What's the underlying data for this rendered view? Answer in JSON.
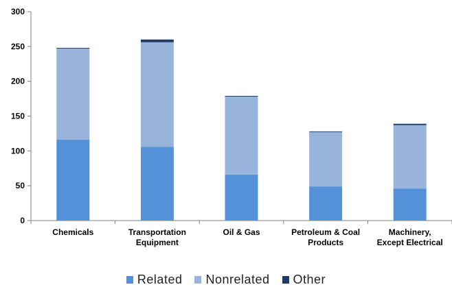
{
  "chart_data": {
    "type": "bar",
    "stacked": true,
    "categories": [
      [
        "Chemicals"
      ],
      [
        "Transportation",
        "Equipment"
      ],
      [
        "Oil & Gas"
      ],
      [
        "Petroleum & Coal",
        "Products"
      ],
      [
        "Machinery,",
        "Except Electrical"
      ]
    ],
    "series": [
      {
        "name": "Related",
        "color": "#5591d9",
        "values": [
          116,
          106,
          66,
          49,
          46
        ]
      },
      {
        "name": "Nonrelated",
        "color": "#98b4da",
        "values": [
          131,
          150,
          112,
          78,
          91
        ]
      },
      {
        "name": "Other",
        "color": "#1f3a63",
        "values": [
          1,
          4,
          1,
          1,
          2
        ]
      }
    ],
    "ylim": [
      0,
      300
    ],
    "yticks": [
      0,
      50,
      100,
      150,
      200,
      250,
      300
    ],
    "grid": false,
    "legend_position": "bottom"
  }
}
